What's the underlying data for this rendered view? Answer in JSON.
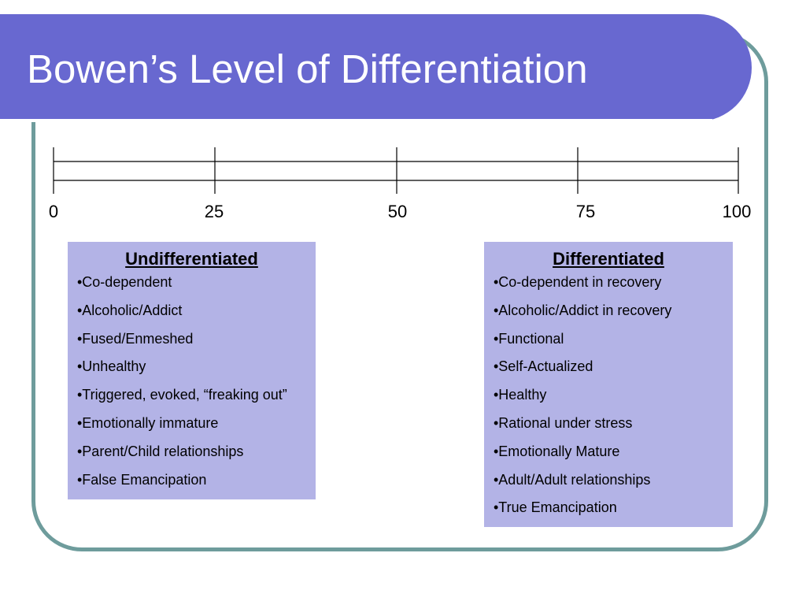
{
  "slide": {
    "title": "Bowen’s Level of Differentiation"
  },
  "scale": {
    "ticks": [
      "0",
      "25",
      "50",
      "75",
      "100"
    ]
  },
  "undifferentiated": {
    "heading": "Undifferentiated",
    "items": [
      "•Co-dependent",
      "•Alcoholic/Addict",
      "•Fused/Enmeshed",
      "•Unhealthy",
      "•Triggered, evoked, “freaking out”",
      "•Emotionally immature",
      "•Parent/Child relationships",
      "•False Emancipation"
    ]
  },
  "differentiated": {
    "heading": "Differentiated",
    "items": [
      "•Co-dependent in recovery",
      "•Alcoholic/Addict in recovery",
      "•Functional",
      "•Self-Actualized",
      "•Healthy",
      "•Rational under stress",
      "•Emotionally Mature",
      "•Adult/Adult relationships",
      "•True Emancipation"
    ]
  },
  "colors": {
    "title_bar": "#6868d0",
    "frame_border": "#6e9c9c",
    "box_fill": "#b3b3e6"
  }
}
